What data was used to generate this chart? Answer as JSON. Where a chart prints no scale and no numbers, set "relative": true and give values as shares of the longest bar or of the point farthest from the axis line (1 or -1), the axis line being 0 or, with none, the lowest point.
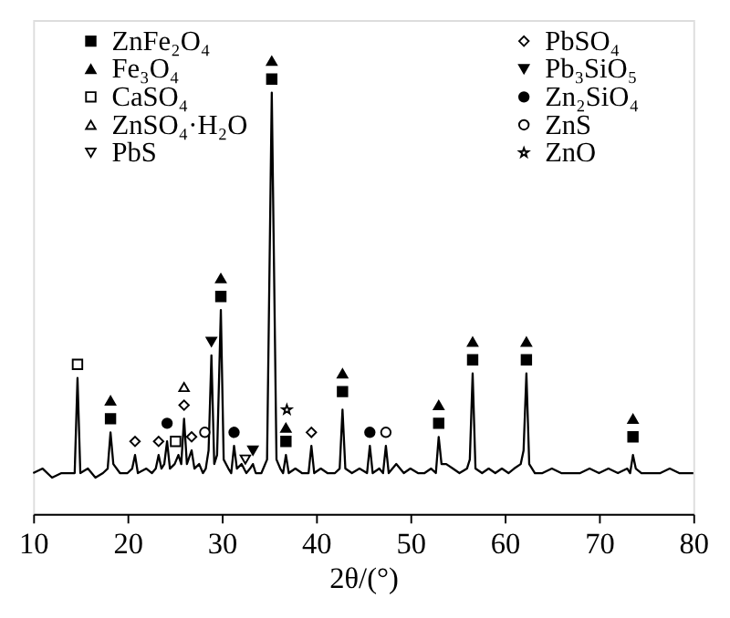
{
  "chart_data": {
    "type": "line",
    "relative": true,
    "xlabel": "2θ/(°)",
    "xlim": [
      10,
      80
    ],
    "xticks": [
      10,
      20,
      30,
      40,
      50,
      60,
      70,
      80
    ],
    "legend": "top",
    "grid": false,
    "x": [
      10,
      11,
      12,
      13,
      14,
      14.4,
      14.7,
      15.0,
      15.8,
      16.6,
      17.4,
      17.9,
      18.2,
      18.5,
      19.2,
      20.0,
      20.5,
      20.8,
      21.1,
      22.0,
      22.6,
      23.0,
      23.3,
      23.6,
      23.9,
      24.2,
      24.5,
      25.0,
      25.4,
      25.7,
      26.0,
      26.3,
      26.8,
      27.1,
      27.6,
      28.0,
      28.3,
      28.6,
      28.9,
      29.2,
      29.5,
      29.9,
      30.2,
      30.7,
      31.0,
      31.3,
      31.6,
      32.1,
      32.6,
      33.0,
      33.3,
      33.6,
      34.2,
      34.8,
      35.3,
      35.8,
      36.2,
      36.5,
      36.8,
      37.1,
      37.8,
      38.5,
      39.2,
      39.5,
      39.8,
      40.5,
      41.2,
      42.0,
      42.5,
      42.8,
      43.1,
      43.8,
      44.6,
      45.4,
      45.7,
      46.0,
      46.7,
      47.1,
      47.4,
      47.7,
      48.5,
      49.3,
      50.0,
      50.8,
      51.5,
      52.2,
      52.7,
      53.0,
      53.3,
      53.8,
      54.5,
      55.2,
      56.0,
      56.3,
      56.6,
      56.9,
      57.6,
      58.3,
      59.0,
      59.7,
      60.4,
      61.0,
      61.7,
      62.0,
      62.3,
      62.6,
      63.2,
      64.0,
      65.0,
      66.0,
      67.0,
      68.0,
      69.0,
      70.0,
      71.0,
      72.0,
      73.0,
      73.3,
      73.6,
      73.9,
      74.5,
      75.5,
      76.5,
      77.5,
      78.5,
      79.3,
      80.0
    ],
    "series": [
      {
        "color": "#000000",
        "values": [
          0.09,
          0.1,
          0.08,
          0.09,
          0.09,
          0.09,
          0.3,
          0.09,
          0.1,
          0.08,
          0.09,
          0.1,
          0.18,
          0.11,
          0.09,
          0.09,
          0.1,
          0.13,
          0.09,
          0.1,
          0.09,
          0.1,
          0.13,
          0.1,
          0.11,
          0.16,
          0.1,
          0.11,
          0.13,
          0.11,
          0.21,
          0.11,
          0.14,
          0.1,
          0.11,
          0.09,
          0.1,
          0.14,
          0.35,
          0.11,
          0.13,
          0.45,
          0.12,
          0.1,
          0.09,
          0.15,
          0.1,
          0.11,
          0.09,
          0.1,
          0.11,
          0.09,
          0.09,
          0.12,
          0.93,
          0.12,
          0.1,
          0.09,
          0.13,
          0.09,
          0.1,
          0.09,
          0.09,
          0.15,
          0.09,
          0.1,
          0.09,
          0.09,
          0.1,
          0.23,
          0.1,
          0.09,
          0.1,
          0.09,
          0.15,
          0.09,
          0.1,
          0.09,
          0.15,
          0.09,
          0.11,
          0.09,
          0.1,
          0.09,
          0.09,
          0.1,
          0.09,
          0.17,
          0.11,
          0.11,
          0.1,
          0.09,
          0.1,
          0.12,
          0.31,
          0.1,
          0.09,
          0.1,
          0.09,
          0.1,
          0.09,
          0.1,
          0.11,
          0.14,
          0.31,
          0.11,
          0.09,
          0.09,
          0.1,
          0.09,
          0.09,
          0.09,
          0.1,
          0.09,
          0.1,
          0.09,
          0.1,
          0.09,
          0.13,
          0.1,
          0.09,
          0.09,
          0.09,
          0.1,
          0.09,
          0.09,
          0.09
        ]
      },
      {
        "type": "scatter",
        "name": "ZnFe₂O₄",
        "color": "#000000",
        "marker": "square",
        "x": [
          18.2,
          29.9,
          35.3,
          36.8,
          42.8,
          53.0,
          56.6,
          62.3,
          73.6
        ],
        "values": [
          0.21,
          0.48,
          0.96,
          0.16,
          0.27,
          0.2,
          0.34,
          0.34,
          0.17
        ]
      },
      {
        "type": "scatter",
        "name": "Fe₃O₄",
        "color": "#000000",
        "marker": "triangle",
        "x": [
          18.2,
          29.9,
          35.3,
          36.8,
          42.8,
          53.0,
          56.6,
          62.3,
          73.6
        ],
        "values": [
          0.25,
          0.52,
          1.0,
          0.19,
          0.31,
          0.24,
          0.38,
          0.38,
          0.21
        ]
      },
      {
        "type": "scatter",
        "name": "CaSO₄",
        "color": "#ffffff",
        "marker": "square",
        "x": [
          14.7,
          25.1
        ],
        "values": [
          0.33,
          0.16
        ]
      },
      {
        "type": "scatter",
        "name": "ZnSO₄·H₂O",
        "color": "#ffffff",
        "marker": "triangle",
        "x": [
          26.0
        ],
        "values": [
          0.28
        ]
      },
      {
        "type": "scatter",
        "name": "PbS",
        "color": "#ffffff",
        "marker": "triangle-down",
        "x": [
          32.5
        ],
        "values": [
          0.12
        ]
      },
      {
        "type": "scatter",
        "name": "PbSO₄",
        "color": "#ffffff",
        "marker": "diamond",
        "x": [
          20.8,
          23.3,
          26.0,
          26.8,
          39.5
        ],
        "values": [
          0.16,
          0.16,
          0.24,
          0.17,
          0.18
        ]
      },
      {
        "type": "scatter",
        "name": "Pb₃SiO₅",
        "color": "#000000",
        "marker": "triangle-down",
        "x": [
          28.9,
          33.3
        ],
        "values": [
          0.38,
          0.14
        ]
      },
      {
        "type": "scatter",
        "name": "Zn₂SiO₄",
        "color": "#000000",
        "marker": "circle",
        "x": [
          24.2,
          31.3,
          45.7
        ],
        "values": [
          0.2,
          0.18,
          0.18
        ]
      },
      {
        "type": "scatter",
        "name": "ZnS",
        "color": "#ffffff",
        "marker": "circle",
        "x": [
          28.2,
          47.4
        ],
        "values": [
          0.18,
          0.18
        ]
      },
      {
        "type": "scatter",
        "name": "ZnO",
        "color": "#ffffff",
        "marker": "star",
        "x": [
          36.9
        ],
        "values": [
          0.23
        ]
      }
    ]
  }
}
